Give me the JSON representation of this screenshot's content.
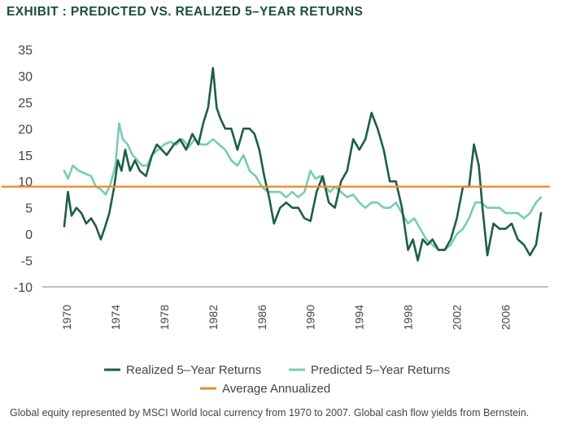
{
  "title": "EXHIBIT : PREDICTED VS. REALIZED 5–YEAR RETURNS",
  "footnote": "Global equity represented by MSCI World local currency from 1970 to  2007.  Global cash flow yields from Bernstein.",
  "colors": {
    "realized": "#1d5e47",
    "predicted": "#76cbb8",
    "average": "#ee8b2f",
    "axis": "#999999"
  },
  "chart_data": {
    "type": "line",
    "title": "",
    "xlabel": "",
    "ylabel": "",
    "ylim": [
      -10,
      35
    ],
    "xlim": [
      1968,
      2009.5
    ],
    "yticks": [
      "35",
      "30",
      "25",
      "20",
      "15",
      "10",
      "5",
      "0",
      "-5",
      "-10"
    ],
    "xticks": [
      "1970",
      "1974",
      "1978",
      "1982",
      "1986",
      "1990",
      "1994",
      "1998",
      "2002",
      "2006"
    ],
    "grid": false,
    "legend": "bottom",
    "series": [
      {
        "name": "Realized 5–Year Returns",
        "x": [
          1969.8,
          1970.1,
          1970.4,
          1970.8,
          1971.2,
          1971.6,
          1972.0,
          1972.4,
          1972.8,
          1973.1,
          1973.5,
          1973.9,
          1974.2,
          1974.5,
          1974.8,
          1975.2,
          1975.6,
          1976.0,
          1976.5,
          1977.0,
          1977.4,
          1977.8,
          1978.2,
          1978.8,
          1979.3,
          1979.8,
          1980.3,
          1980.8,
          1981.2,
          1981.6,
          1982.0,
          1982.3,
          1982.6,
          1983.0,
          1983.5,
          1984.0,
          1984.5,
          1985.0,
          1985.4,
          1985.8,
          1986.2,
          1986.6,
          1987.0,
          1987.5,
          1988.0,
          1988.5,
          1989.0,
          1989.5,
          1990.0,
          1990.5,
          1991.0,
          1991.5,
          1992.0,
          1992.5,
          1993.0,
          1993.5,
          1994.0,
          1994.5,
          1995.0,
          1995.5,
          1996.0,
          1996.5,
          1997.0,
          1997.5,
          1998.0,
          1998.4,
          1998.8,
          1999.2,
          1999.6,
          2000.0,
          2000.5,
          2001.0,
          2001.5,
          2002.0,
          2002.5,
          2003.0,
          2003.4,
          2003.8,
          2004.1,
          2004.5,
          2005.0,
          2005.5,
          2006.0,
          2006.5,
          2007.0,
          2007.5,
          2008.0,
          2008.5,
          2008.9
        ],
        "values": [
          1.5,
          8,
          3.5,
          5,
          4,
          2,
          3,
          1.5,
          -1,
          1,
          4,
          9,
          14,
          12,
          16,
          12,
          14,
          12,
          11,
          15,
          17,
          16,
          15,
          17,
          18,
          16,
          19,
          17,
          21,
          24,
          31.5,
          24,
          22,
          20,
          20,
          16,
          20,
          20,
          19,
          16,
          11,
          7,
          2,
          5,
          6,
          5,
          5,
          3,
          2.5,
          8,
          11,
          6,
          5,
          10,
          12,
          18,
          16,
          18,
          23,
          20,
          16,
          10,
          10,
          5,
          -3,
          -1,
          -5,
          -1,
          -2,
          -1,
          -3,
          -3,
          -1,
          3,
          9,
          9,
          17,
          13,
          5,
          -4,
          2,
          1,
          1,
          2,
          -1,
          -2,
          -4,
          -2,
          4
        ]
      },
      {
        "name": "Predicted 5–Year Returns",
        "x": [
          1969.8,
          1970.1,
          1970.5,
          1971.0,
          1971.5,
          1972.0,
          1972.4,
          1972.8,
          1973.2,
          1973.6,
          1974.0,
          1974.3,
          1974.6,
          1975.0,
          1975.4,
          1975.8,
          1976.2,
          1976.6,
          1977.0,
          1977.5,
          1978.0,
          1978.5,
          1979.0,
          1979.5,
          1980.0,
          1980.5,
          1981.0,
          1981.5,
          1982.0,
          1982.5,
          1983.0,
          1983.5,
          1984.0,
          1984.5,
          1985.0,
          1985.5,
          1986.0,
          1986.5,
          1987.0,
          1987.5,
          1988.0,
          1988.5,
          1989.0,
          1989.5,
          1990.0,
          1990.4,
          1990.8,
          1991.2,
          1991.6,
          1992.0,
          1992.5,
          1993.0,
          1993.5,
          1994.0,
          1994.5,
          1995.0,
          1995.5,
          1996.0,
          1996.5,
          1997.0,
          1997.5,
          1998.0,
          1998.5,
          1999.0,
          1999.5,
          2000.0,
          2000.5,
          2001.0,
          2001.5,
          2002.0,
          2002.5,
          2003.0,
          2003.5,
          2004.0,
          2004.5,
          2005.0,
          2005.5,
          2006.0,
          2006.5,
          2007.0,
          2007.5,
          2008.0,
          2008.5,
          2008.9
        ],
        "values": [
          12,
          10.5,
          13,
          12,
          11.5,
          11,
          9,
          8.5,
          7.5,
          9.5,
          13,
          21,
          18,
          17,
          15,
          14,
          13,
          13,
          15,
          16,
          17,
          17.5,
          17,
          18,
          16.5,
          18,
          17,
          17,
          18,
          17,
          16,
          14,
          13,
          15,
          12,
          11,
          9,
          8,
          8,
          8,
          7,
          8,
          7,
          8,
          12,
          10.5,
          11,
          9,
          8,
          9,
          8,
          7,
          7.5,
          6,
          5,
          6,
          6,
          5,
          5,
          6,
          4,
          2,
          3,
          1,
          -1,
          -2,
          -3,
          -3,
          -2,
          0,
          1,
          3,
          6,
          6,
          5,
          5,
          5,
          4,
          4,
          4,
          3,
          4,
          6,
          7
        ]
      }
    ],
    "reference_lines": [
      {
        "name": "Average Annualized",
        "y": 9
      }
    ]
  }
}
